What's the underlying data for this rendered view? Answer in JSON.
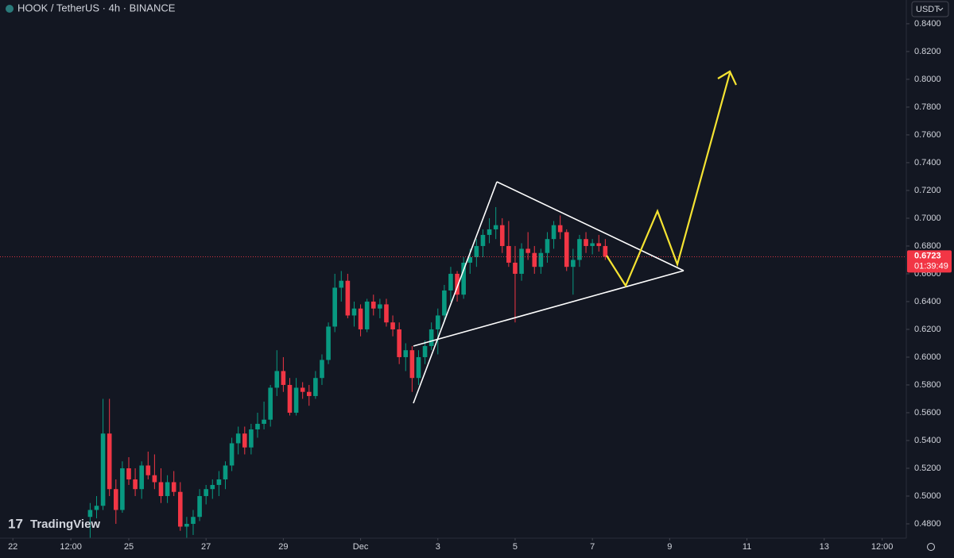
{
  "chart_data": {
    "type": "candlestick",
    "title": "HOOK / TetherUS · 4h · BINANCE",
    "currency": "USDT",
    "brand": "TradingView",
    "countdown": "01:39:49",
    "last_price": 0.6723,
    "up_color": "#089981",
    "down_color": "#f23645",
    "x": [
      48,
      52,
      56,
      60,
      64,
      68,
      72,
      76,
      80,
      84,
      88,
      92,
      96,
      100,
      104,
      108,
      112,
      116,
      120,
      124,
      128,
      132,
      136,
      140,
      144,
      148,
      152,
      156,
      160,
      164,
      168,
      172,
      176,
      180,
      184,
      188,
      192,
      196,
      200,
      204,
      208,
      212,
      216,
      220,
      224,
      228,
      232,
      236,
      240,
      244,
      248,
      252,
      256,
      260,
      264,
      268,
      272,
      276,
      280,
      284,
      288,
      292,
      296,
      300,
      304,
      308,
      312,
      316,
      320,
      324,
      328,
      332,
      336,
      340,
      344,
      348,
      352,
      356,
      360,
      364,
      368
    ],
    "open": [
      0.485,
      0.49,
      0.493,
      0.545,
      0.505,
      0.49,
      0.52,
      0.512,
      0.505,
      0.522,
      0.515,
      0.51,
      0.5,
      0.51,
      0.503,
      0.478,
      0.48,
      0.485,
      0.5,
      0.505,
      0.508,
      0.512,
      0.522,
      0.538,
      0.545,
      0.535,
      0.548,
      0.552,
      0.555,
      0.578,
      0.59,
      0.58,
      0.56,
      0.578,
      0.575,
      0.572,
      0.585,
      0.598,
      0.622,
      0.65,
      0.655,
      0.63,
      0.635,
      0.62,
      0.64,
      0.635,
      0.638,
      0.625,
      0.62,
      0.6,
      0.605,
      0.585,
      0.6,
      0.608,
      0.62,
      0.63,
      0.648,
      0.66,
      0.645,
      0.668,
      0.672,
      0.68,
      0.688,
      0.692,
      0.695,
      0.68,
      0.668,
      0.66,
      0.678,
      0.675,
      0.665,
      0.675,
      0.685,
      0.695,
      0.69,
      0.665,
      0.67,
      0.685,
      0.68,
      0.682,
      0.68
    ],
    "high": [
      0.495,
      0.5,
      0.57,
      0.57,
      0.512,
      0.525,
      0.528,
      0.52,
      0.525,
      0.532,
      0.53,
      0.52,
      0.515,
      0.518,
      0.51,
      0.485,
      0.49,
      0.505,
      0.508,
      0.512,
      0.518,
      0.525,
      0.542,
      0.55,
      0.55,
      0.552,
      0.56,
      0.568,
      0.58,
      0.605,
      0.6,
      0.585,
      0.585,
      0.582,
      0.58,
      0.59,
      0.602,
      0.625,
      0.66,
      0.662,
      0.66,
      0.64,
      0.638,
      0.642,
      0.645,
      0.642,
      0.642,
      0.63,
      0.625,
      0.61,
      0.608,
      0.605,
      0.612,
      0.625,
      0.635,
      0.652,
      0.665,
      0.662,
      0.672,
      0.678,
      0.685,
      0.692,
      0.7,
      0.708,
      0.7,
      0.698,
      0.68,
      0.682,
      0.69,
      0.68,
      0.678,
      0.69,
      0.698,
      0.702,
      0.692,
      0.678,
      0.688,
      0.69,
      0.685,
      0.688,
      0.685
    ],
    "low": [
      0.47,
      0.484,
      0.49,
      0.5,
      0.48,
      0.488,
      0.508,
      0.5,
      0.498,
      0.512,
      0.505,
      0.495,
      0.495,
      0.5,
      0.475,
      0.47,
      0.472,
      0.482,
      0.494,
      0.498,
      0.5,
      0.505,
      0.518,
      0.53,
      0.53,
      0.53,
      0.542,
      0.548,
      0.55,
      0.572,
      0.575,
      0.558,
      0.558,
      0.57,
      0.565,
      0.57,
      0.58,
      0.595,
      0.618,
      0.64,
      0.628,
      0.622,
      0.615,
      0.618,
      0.63,
      0.628,
      0.622,
      0.615,
      0.595,
      0.59,
      0.575,
      0.58,
      0.595,
      0.605,
      0.602,
      0.625,
      0.64,
      0.64,
      0.642,
      0.66,
      0.665,
      0.672,
      0.682,
      0.685,
      0.675,
      0.665,
      0.625,
      0.655,
      0.67,
      0.66,
      0.66,
      0.668,
      0.678,
      0.685,
      0.662,
      0.645,
      0.665,
      0.675,
      0.674,
      0.676,
      0.67
    ],
    "close": [
      0.49,
      0.493,
      0.545,
      0.505,
      0.49,
      0.52,
      0.512,
      0.505,
      0.522,
      0.515,
      0.51,
      0.5,
      0.51,
      0.503,
      0.478,
      0.48,
      0.485,
      0.5,
      0.505,
      0.508,
      0.512,
      0.522,
      0.538,
      0.545,
      0.535,
      0.548,
      0.552,
      0.555,
      0.578,
      0.59,
      0.58,
      0.56,
      0.578,
      0.575,
      0.572,
      0.585,
      0.598,
      0.622,
      0.65,
      0.655,
      0.63,
      0.635,
      0.62,
      0.64,
      0.635,
      0.638,
      0.625,
      0.62,
      0.6,
      0.605,
      0.585,
      0.6,
      0.608,
      0.62,
      0.63,
      0.648,
      0.66,
      0.645,
      0.668,
      0.672,
      0.68,
      0.688,
      0.692,
      0.695,
      0.68,
      0.668,
      0.66,
      0.678,
      0.675,
      0.665,
      0.675,
      0.685,
      0.695,
      0.69,
      0.665,
      0.67,
      0.685,
      0.68,
      0.682,
      0.68,
      0.6723
    ],
    "xlim": [
      -8,
      555
    ],
    "xticks": [
      {
        "value": 0,
        "label": "22"
      },
      {
        "value": 36,
        "label": "12:00"
      },
      {
        "value": 72,
        "label": "25"
      },
      {
        "value": 120,
        "label": "27"
      },
      {
        "value": 168,
        "label": "29"
      },
      {
        "value": 216,
        "label": "Dec"
      },
      {
        "value": 264,
        "label": "3"
      },
      {
        "value": 312,
        "label": "5"
      },
      {
        "value": 360,
        "label": "7"
      },
      {
        "value": 408,
        "label": "9"
      },
      {
        "value": 456,
        "label": "11"
      },
      {
        "value": 504,
        "label": "13"
      },
      {
        "value": 540,
        "label": "12:00"
      }
    ],
    "ylim": [
      0.4697,
      0.8571
    ],
    "yticks": [
      {
        "value": 0.48,
        "label": "0.4800"
      },
      {
        "value": 0.5,
        "label": "0.5000"
      },
      {
        "value": 0.52,
        "label": "0.5200"
      },
      {
        "value": 0.54,
        "label": "0.5400"
      },
      {
        "value": 0.56,
        "label": "0.5600"
      },
      {
        "value": 0.58,
        "label": "0.5800"
      },
      {
        "value": 0.6,
        "label": "0.6000"
      },
      {
        "value": 0.62,
        "label": "0.6200"
      },
      {
        "value": 0.64,
        "label": "0.6400"
      },
      {
        "value": 0.66,
        "label": "0.6600"
      },
      {
        "value": 0.68,
        "label": "0.6800"
      },
      {
        "value": 0.7,
        "label": "0.7000"
      },
      {
        "value": 0.72,
        "label": "0.7200"
      },
      {
        "value": 0.74,
        "label": "0.7400"
      },
      {
        "value": 0.76,
        "label": "0.7600"
      },
      {
        "value": 0.78,
        "label": "0.7800"
      },
      {
        "value": 0.8,
        "label": "0.8000"
      },
      {
        "value": 0.82,
        "label": "0.8200"
      },
      {
        "value": 0.84,
        "label": "0.8400"
      }
    ]
  }
}
